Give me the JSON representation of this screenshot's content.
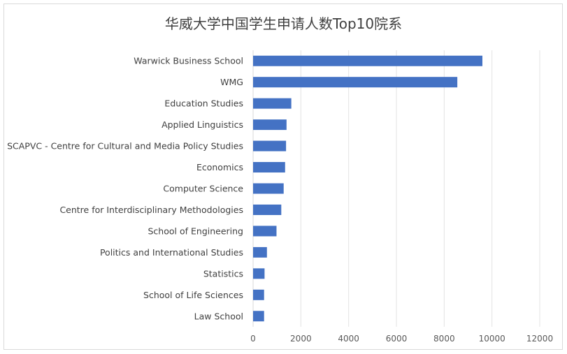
{
  "chart_data": {
    "type": "bar",
    "orientation": "horizontal",
    "title": "华威大学中国学生申请人数Top10院系",
    "categories": [
      "Warwick Business School",
      "WMG",
      "Education Studies",
      "Applied Linguistics",
      "SCAPVC - Centre for Cultural and Media Policy Studies",
      "Economics",
      "Computer Science",
      "Centre for Interdisciplinary Methodologies",
      "School of Engineering",
      "Politics and International Studies",
      "Statistics",
      "School of Life Sciences",
      "Law School"
    ],
    "values": [
      9600,
      8550,
      1600,
      1400,
      1380,
      1340,
      1280,
      1180,
      980,
      580,
      480,
      460,
      460
    ],
    "xlim": [
      0,
      12000
    ],
    "xticks": [
      "0",
      "2000",
      "4000",
      "6000",
      "8000",
      "10000",
      "12000"
    ],
    "grid": "vertical",
    "bar_color": "#4472c4"
  }
}
